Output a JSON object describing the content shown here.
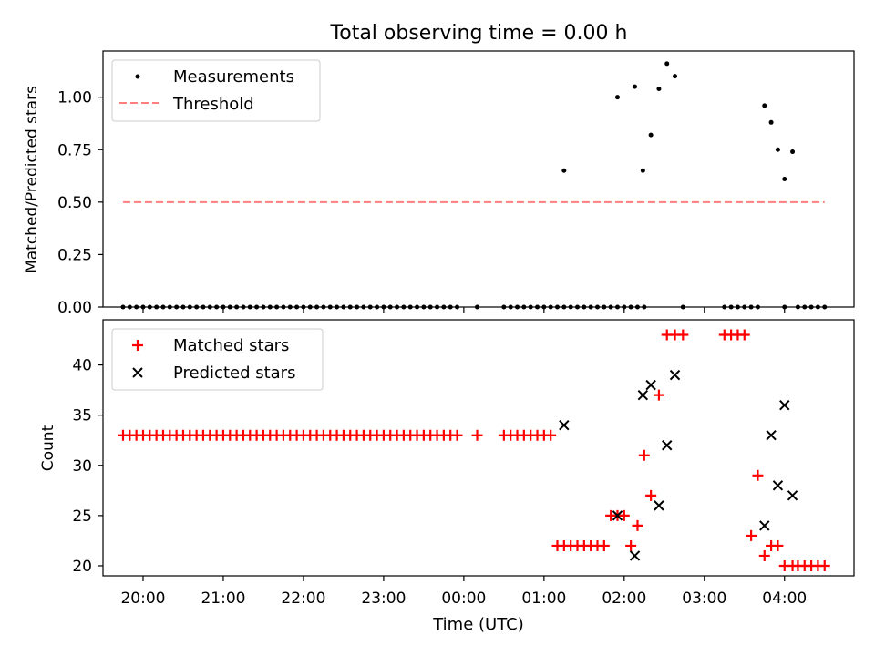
{
  "chart_data": [
    {
      "type": "scatter",
      "title": "Total observing time = 0.00 h",
      "xlabel": "",
      "ylabel": "Matched/Predicted stars",
      "ylim": [
        0,
        1.22
      ],
      "yticks": [
        "0.00",
        "0.25",
        "0.50",
        "0.75",
        "1.00"
      ],
      "legend_position": "top-left",
      "series": [
        {
          "name": "Measurements",
          "marker": "dot",
          "color": "#000000",
          "x": [
            "19:45",
            "19:50",
            "19:55",
            "20:00",
            "20:05",
            "20:10",
            "20:15",
            "20:20",
            "20:25",
            "20:30",
            "20:35",
            "20:40",
            "20:45",
            "20:50",
            "20:55",
            "21:00",
            "21:05",
            "21:10",
            "21:15",
            "21:20",
            "21:25",
            "21:30",
            "21:35",
            "21:40",
            "21:45",
            "21:50",
            "21:55",
            "22:00",
            "22:05",
            "22:10",
            "22:15",
            "22:20",
            "22:25",
            "22:30",
            "22:35",
            "22:40",
            "22:45",
            "22:50",
            "22:55",
            "23:00",
            "23:05",
            "23:10",
            "23:15",
            "23:20",
            "23:25",
            "23:30",
            "23:35",
            "23:40",
            "23:45",
            "23:50",
            "23:55",
            "00:10",
            "00:30",
            "00:35",
            "00:40",
            "00:45",
            "00:50",
            "00:55",
            "01:00",
            "01:05",
            "01:10",
            "01:15",
            "01:20",
            "01:25",
            "01:30",
            "01:35",
            "01:40",
            "01:45",
            "01:50",
            "01:55",
            "02:00",
            "02:05",
            "02:10",
            "02:15",
            "03:15",
            "03:20",
            "03:25",
            "03:30",
            "03:35",
            "03:40",
            "04:00",
            "04:10",
            "04:15",
            "04:20",
            "04:25",
            "04:30",
            "01:15",
            "01:55",
            "02:08",
            "02:14",
            "02:20",
            "02:26",
            "02:32",
            "02:38",
            "02:44",
            "03:45",
            "03:50",
            "03:55",
            "04:00",
            "04:06"
          ],
          "y": [
            0,
            0,
            0,
            0,
            0,
            0,
            0,
            0,
            0,
            0,
            0,
            0,
            0,
            0,
            0,
            0,
            0,
            0,
            0,
            0,
            0,
            0,
            0,
            0,
            0,
            0,
            0,
            0,
            0,
            0,
            0,
            0,
            0,
            0,
            0,
            0,
            0,
            0,
            0,
            0,
            0,
            0,
            0,
            0,
            0,
            0,
            0,
            0,
            0,
            0,
            0,
            0,
            0,
            0,
            0,
            0,
            0,
            0,
            0,
            0,
            0,
            0,
            0,
            0,
            0,
            0,
            0,
            0,
            0,
            0,
            0,
            0,
            0,
            0,
            0,
            0,
            0,
            0,
            0,
            0,
            0,
            0,
            0,
            0,
            0,
            0,
            0.65,
            1.0,
            1.05,
            0.65,
            0.82,
            1.04,
            1.16,
            1.1,
            0.0,
            0.96,
            0.88,
            0.75,
            0.61,
            0.74
          ]
        },
        {
          "name": "Threshold",
          "type": "line",
          "style": "dashed",
          "color": "#ff7f7f",
          "x": [
            "19:45",
            "04:30"
          ],
          "y": [
            0.5,
            0.5
          ]
        }
      ]
    },
    {
      "type": "scatter",
      "title": "",
      "xlabel": "Time (UTC)",
      "ylabel": "Count",
      "ylim": [
        19,
        44.5
      ],
      "yticks": [
        "20",
        "25",
        "30",
        "35",
        "40"
      ],
      "xticks": [
        "20:00",
        "21:00",
        "22:00",
        "23:00",
        "00:00",
        "01:00",
        "02:00",
        "03:00",
        "04:00"
      ],
      "x_domain": [
        "19:30",
        "04:52"
      ],
      "legend_position": "top-left",
      "series": [
        {
          "name": "Matched stars",
          "marker": "plus",
          "color": "#ff0000",
          "x": [
            "19:45",
            "19:50",
            "19:55",
            "20:00",
            "20:05",
            "20:10",
            "20:15",
            "20:20",
            "20:25",
            "20:30",
            "20:35",
            "20:40",
            "20:45",
            "20:50",
            "20:55",
            "21:00",
            "21:05",
            "21:10",
            "21:15",
            "21:20",
            "21:25",
            "21:30",
            "21:35",
            "21:40",
            "21:45",
            "21:50",
            "21:55",
            "22:00",
            "22:05",
            "22:10",
            "22:15",
            "22:20",
            "22:25",
            "22:30",
            "22:35",
            "22:40",
            "22:45",
            "22:50",
            "22:55",
            "23:00",
            "23:05",
            "23:10",
            "23:15",
            "23:20",
            "23:25",
            "23:30",
            "23:35",
            "23:40",
            "23:45",
            "23:50",
            "23:55",
            "00:10",
            "00:30",
            "00:35",
            "00:40",
            "00:45",
            "00:50",
            "00:55",
            "01:00",
            "01:05",
            "01:10",
            "01:15",
            "01:20",
            "01:25",
            "01:30",
            "01:35",
            "01:40",
            "01:45",
            "01:50",
            "01:55",
            "02:00",
            "02:05",
            "02:10",
            "02:15",
            "02:20",
            "02:26",
            "02:32",
            "02:38",
            "02:44",
            "03:15",
            "03:20",
            "03:25",
            "03:30",
            "03:35",
            "03:40",
            "03:45",
            "03:50",
            "03:55",
            "04:00",
            "04:06",
            "04:10",
            "04:15",
            "04:20",
            "04:25",
            "04:30"
          ],
          "y": [
            33,
            33,
            33,
            33,
            33,
            33,
            33,
            33,
            33,
            33,
            33,
            33,
            33,
            33,
            33,
            33,
            33,
            33,
            33,
            33,
            33,
            33,
            33,
            33,
            33,
            33,
            33,
            33,
            33,
            33,
            33,
            33,
            33,
            33,
            33,
            33,
            33,
            33,
            33,
            33,
            33,
            33,
            33,
            33,
            33,
            33,
            33,
            33,
            33,
            33,
            33,
            33,
            33,
            33,
            33,
            33,
            33,
            33,
            33,
            33,
            22,
            22,
            22,
            22,
            22,
            22,
            22,
            22,
            25,
            25,
            25,
            22,
            24,
            31,
            27,
            37,
            43,
            43,
            43,
            43,
            43,
            43,
            43,
            23,
            29,
            21,
            22,
            22,
            20,
            20,
            20,
            20,
            20,
            20,
            20
          ]
        },
        {
          "name": "Predicted stars",
          "marker": "x",
          "color": "#000000",
          "x": [
            "01:15",
            "01:55",
            "02:08",
            "02:14",
            "02:20",
            "02:26",
            "02:32",
            "02:38",
            "03:45",
            "03:50",
            "03:55",
            "04:00",
            "04:06"
          ],
          "y": [
            34,
            25,
            21,
            37,
            38,
            26,
            32,
            39,
            24,
            33,
            28,
            36,
            27
          ]
        }
      ]
    }
  ]
}
